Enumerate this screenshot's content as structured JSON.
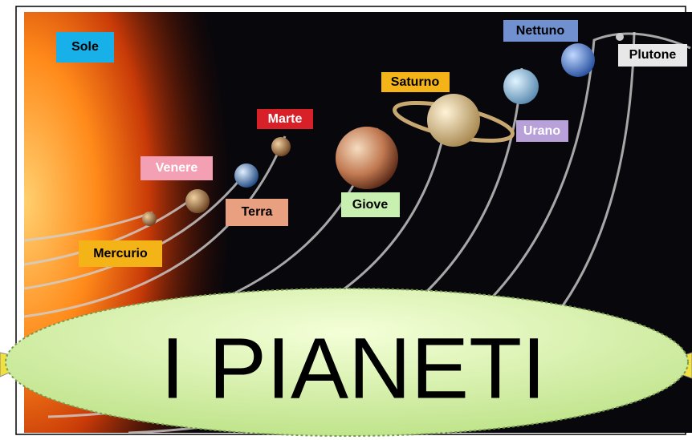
{
  "title": "I PIANETI",
  "labels": {
    "sun": "Sole",
    "neptune": "Nettuno",
    "pluto": "Plutone",
    "saturn": "Saturno",
    "uranus": "Urano",
    "mars": "Marte",
    "venus": "Venere",
    "earth": "Terra",
    "jupiter": "Giove",
    "mercury": "Mercurio"
  }
}
